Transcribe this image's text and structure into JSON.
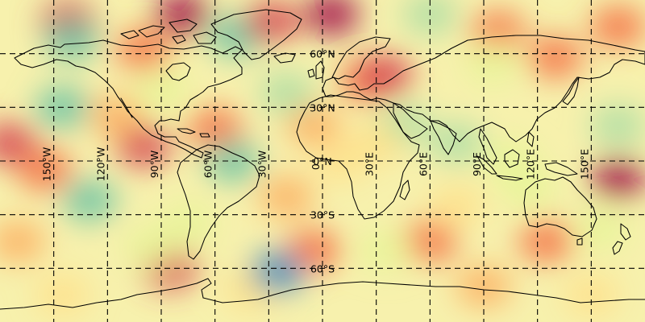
{
  "map": {
    "projection": "PlateCarree",
    "extent": {
      "lon": [
        -180,
        180
      ],
      "lat": [
        -90,
        90
      ]
    },
    "colormap": "Spectral_r",
    "colormap_colors": [
      "#3288bd",
      "#66c2a5",
      "#abdda4",
      "#e6f598",
      "#ffffbf",
      "#fee08b",
      "#fdae61",
      "#f46d43",
      "#d53e4f",
      "#9e0142"
    ],
    "background_tone": "#f7f1ad",
    "coastline_color": "#000000",
    "gridline_color": "#000000",
    "gridline_style": "dashed",
    "meridians": [
      -150,
      -120,
      -90,
      -60,
      -30,
      0,
      30,
      60,
      90,
      120,
      150
    ],
    "parallels": [
      60,
      30,
      0,
      -30,
      -60
    ],
    "lon_labels": [
      {
        "lon": -150,
        "text": "150°W"
      },
      {
        "lon": -120,
        "text": "120°W"
      },
      {
        "lon": -90,
        "text": "90°W"
      },
      {
        "lon": -60,
        "text": "60°W"
      },
      {
        "lon": -30,
        "text": "30°W"
      },
      {
        "lon": 0,
        "text": "0°"
      },
      {
        "lon": 30,
        "text": "30°E"
      },
      {
        "lon": 60,
        "text": "60°E"
      },
      {
        "lon": 90,
        "text": "90°E"
      },
      {
        "lon": 120,
        "text": "120°E"
      },
      {
        "lon": 150,
        "text": "150°E"
      }
    ],
    "lat_labels": [
      {
        "lat": 60,
        "text": "60°N"
      },
      {
        "lat": 30,
        "text": "30°N"
      },
      {
        "lat": 0,
        "text": "0°N"
      },
      {
        "lat": -30,
        "text": "30°S"
      },
      {
        "lat": -60,
        "text": "60°S"
      }
    ],
    "field_features": [
      {
        "lon": -142,
        "lat": 78,
        "level": 0.85
      },
      {
        "lon": -100,
        "lat": 62,
        "level": 0.8
      },
      {
        "lon": -78,
        "lat": 82,
        "level": 0.95
      },
      {
        "lon": -48,
        "lat": 70,
        "level": 0.15
      },
      {
        "lon": -28,
        "lat": 78,
        "level": 0.9
      },
      {
        "lon": 5,
        "lat": 82,
        "level": 0.95
      },
      {
        "lon": 25,
        "lat": 45,
        "level": 0.8
      },
      {
        "lon": 35,
        "lat": 48,
        "level": 0.85
      },
      {
        "lon": 98,
        "lat": 72,
        "level": 0.8
      },
      {
        "lon": 130,
        "lat": 58,
        "level": 0.8
      },
      {
        "lon": 165,
        "lat": 75,
        "level": 0.75
      },
      {
        "lon": -175,
        "lat": 10,
        "level": 0.9
      },
      {
        "lon": -155,
        "lat": -5,
        "level": 0.75
      },
      {
        "lon": -100,
        "lat": 8,
        "level": 0.85
      },
      {
        "lon": -115,
        "lat": 25,
        "level": 0.7
      },
      {
        "lon": -5,
        "lat": 20,
        "level": 0.7
      },
      {
        "lon": -20,
        "lat": -20,
        "level": 0.7
      },
      {
        "lon": 60,
        "lat": -45,
        "level": 0.8
      },
      {
        "lon": 125,
        "lat": -45,
        "level": 0.75
      },
      {
        "lon": 165,
        "lat": -10,
        "level": 0.95
      },
      {
        "lon": -85,
        "lat": -60,
        "level": 0.9
      },
      {
        "lon": -40,
        "lat": -72,
        "level": 0.6
      },
      {
        "lon": 90,
        "lat": -70,
        "level": 0.65
      },
      {
        "lon": -145,
        "lat": -75,
        "level": 0.6
      },
      {
        "lon": 150,
        "lat": -75,
        "level": 0.6
      },
      {
        "lon": -60,
        "lat": 18,
        "level": 0.75
      },
      {
        "lon": -5,
        "lat": -50,
        "level": 0.75
      },
      {
        "lon": -140,
        "lat": 68,
        "level": 0.15
      },
      {
        "lon": -145,
        "lat": 30,
        "level": 0.1
      },
      {
        "lon": -130,
        "lat": -22,
        "level": 0.15
      },
      {
        "lon": -95,
        "lat": -48,
        "level": 0.35
      },
      {
        "lon": -25,
        "lat": -62,
        "level": 0.0
      },
      {
        "lon": -50,
        "lat": 0,
        "level": 0.1
      },
      {
        "lon": -20,
        "lat": 38,
        "level": 0.2
      },
      {
        "lon": 75,
        "lat": 10,
        "level": 0.25
      },
      {
        "lon": 105,
        "lat": 0,
        "level": 0.3
      },
      {
        "lon": 115,
        "lat": -15,
        "level": 0.35
      },
      {
        "lon": 35,
        "lat": -50,
        "level": 0.3
      },
      {
        "lon": 45,
        "lat": 20,
        "level": 0.25
      },
      {
        "lon": 60,
        "lat": 82,
        "level": 0.2
      },
      {
        "lon": 95,
        "lat": 55,
        "level": 0.3
      },
      {
        "lon": -90,
        "lat": 40,
        "level": 0.35
      },
      {
        "lon": 165,
        "lat": 20,
        "level": 0.25
      },
      {
        "lon": 155,
        "lat": -38,
        "level": 0.3
      },
      {
        "lon": -75,
        "lat": -35,
        "level": 0.35
      },
      {
        "lon": 10,
        "lat": 0,
        "level": 0.55
      },
      {
        "lon": 30,
        "lat": 10,
        "level": 0.6
      },
      {
        "lon": -170,
        "lat": -45,
        "level": 0.65
      },
      {
        "lon": 75,
        "lat": -25,
        "level": 0.6
      }
    ]
  }
}
